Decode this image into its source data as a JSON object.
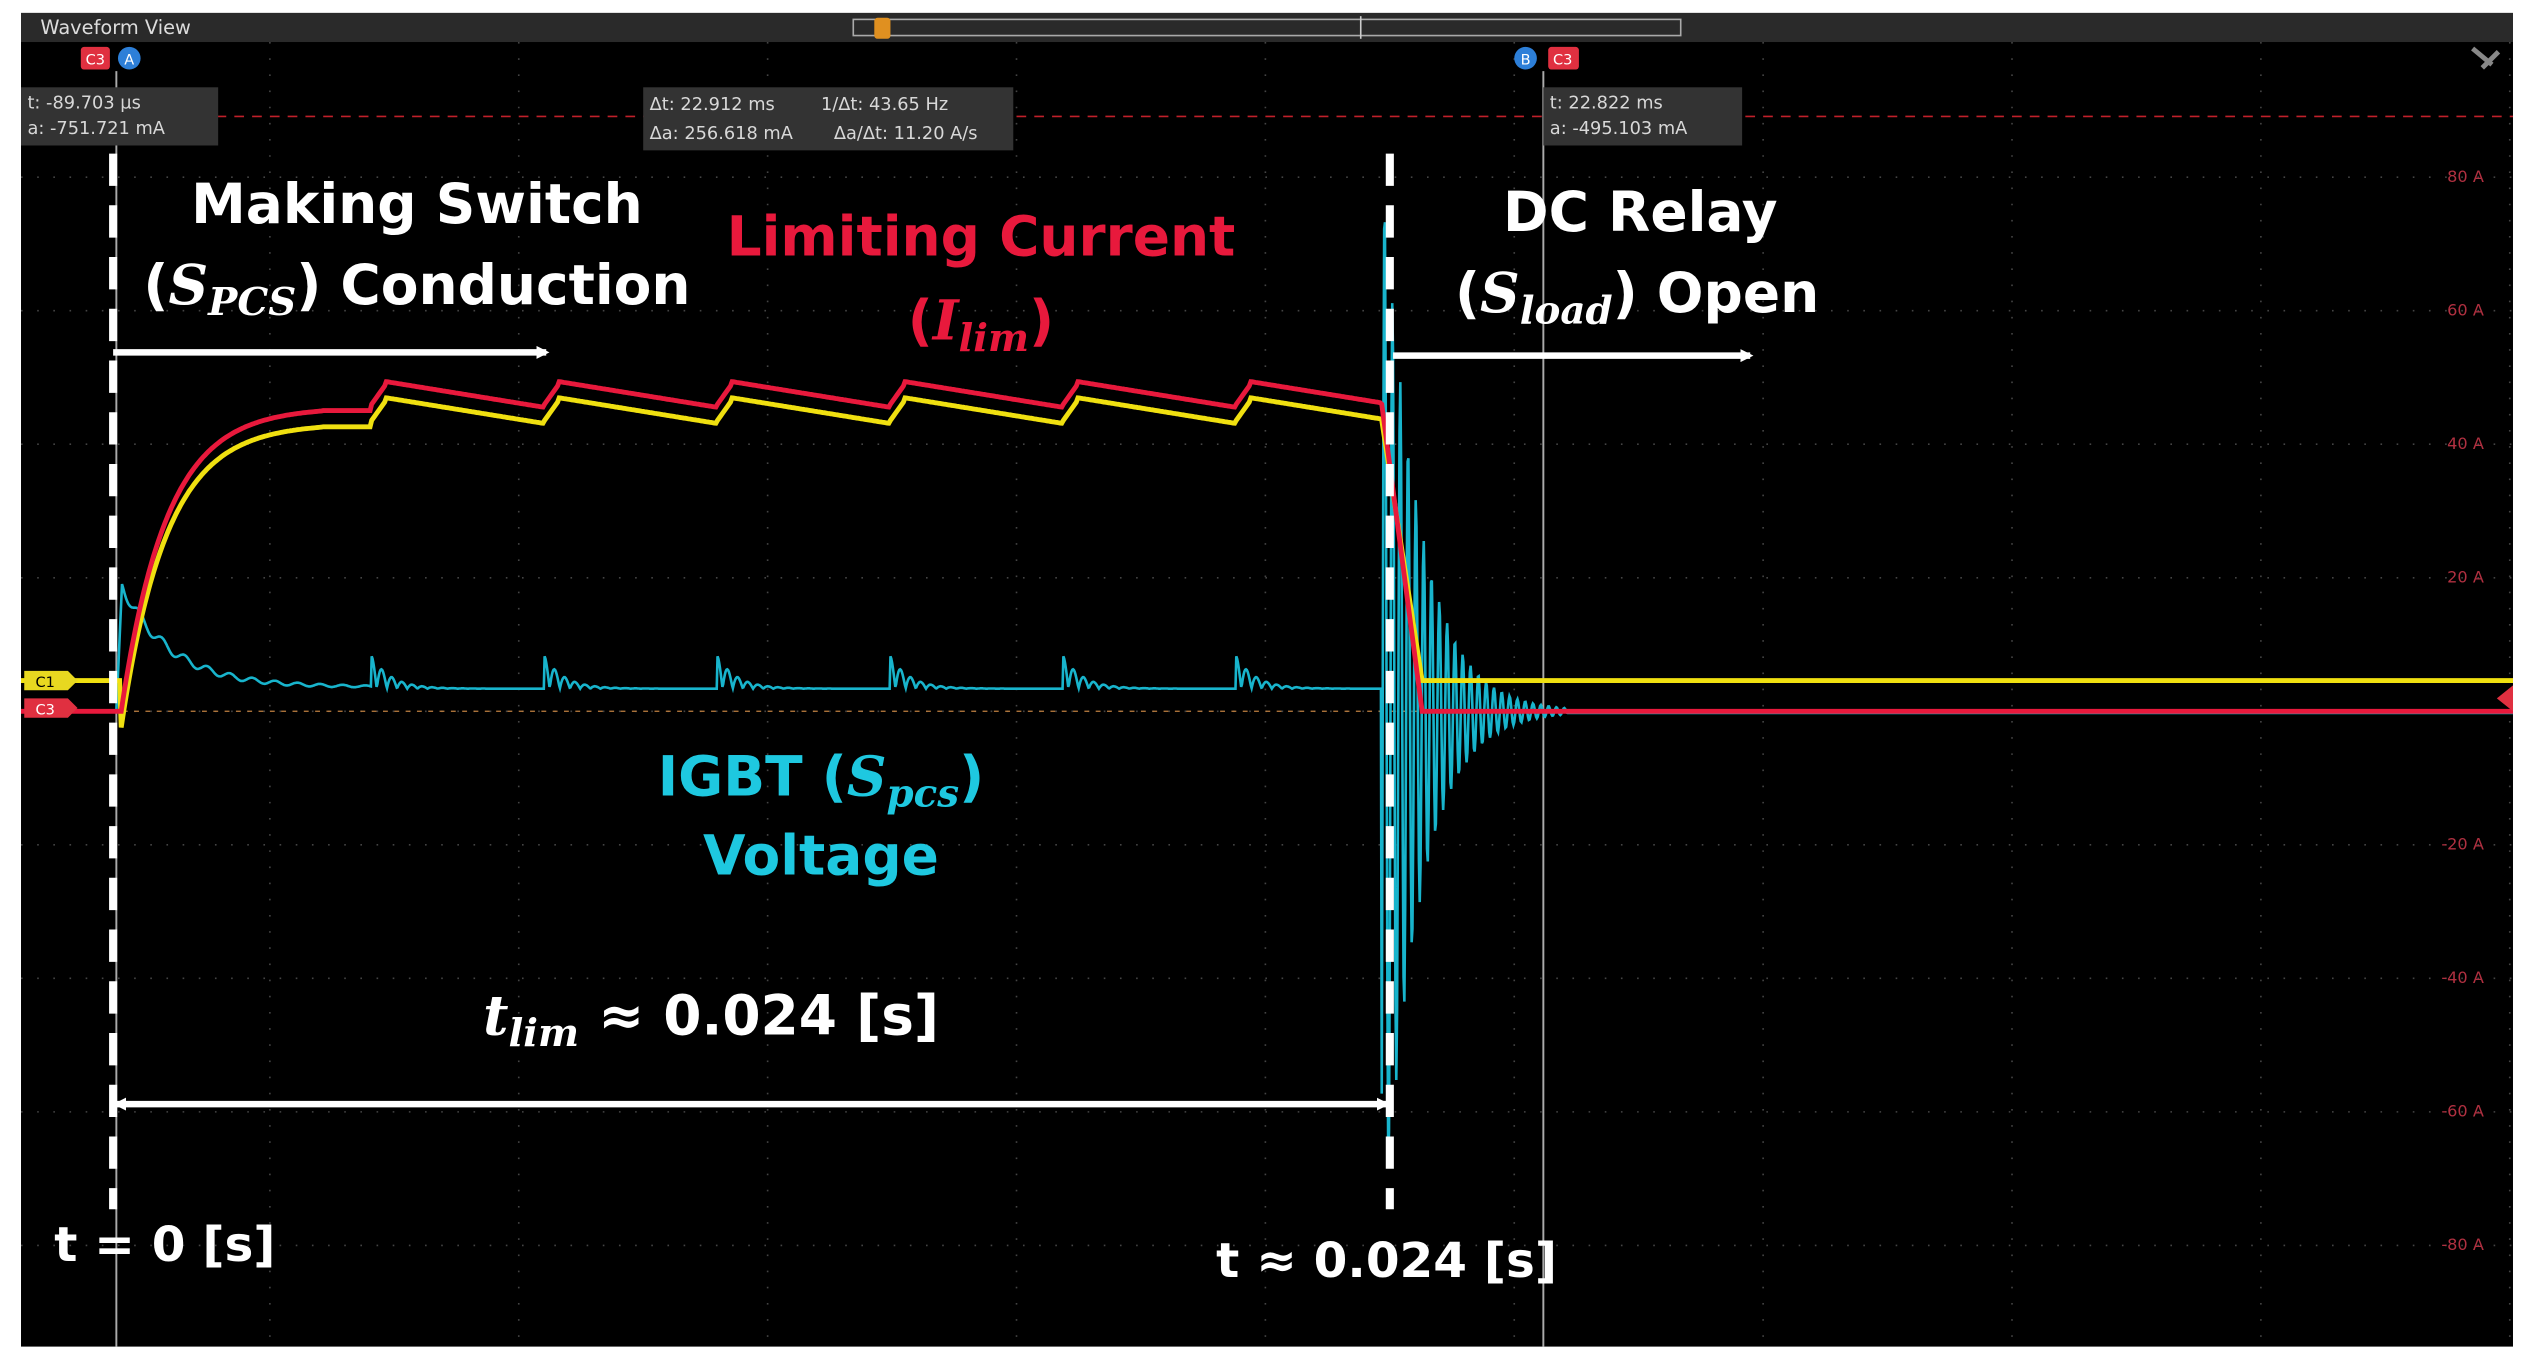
{
  "window": {
    "title": "Waveform View"
  },
  "cursors": {
    "a_badges": [
      "C3",
      "A"
    ],
    "b_badges": [
      "B",
      "C3"
    ],
    "a_readout": [
      "t: -89.703 µs",
      "a: -751.721 mA"
    ],
    "delta_readout": [
      "Δt: 22.912 ms",
      "1/Δt: 43.65 Hz",
      "Δa: 256.618 mA",
      "Δa/Δt: 11.20 A/s"
    ],
    "b_readout": [
      "t: 22.822 ms",
      "a: -495.103 mA"
    ]
  },
  "channels": [
    "C1",
    "C3"
  ],
  "scale_labels": [
    "80 A",
    "60 A",
    "40 A",
    "20 A",
    "-20 A",
    "-40 A",
    "-60 A",
    "-80 A"
  ],
  "annotations": {
    "making_switch": {
      "line1": "Making Switch",
      "line2": [
        "(",
        "S",
        "PCS",
        ") Conduction"
      ]
    },
    "limiting_current": {
      "line1": "Limiting Current",
      "line2": [
        "(",
        "I",
        "lim",
        ")"
      ]
    },
    "dc_relay": {
      "line1": "DC Relay",
      "line2": [
        "(",
        "S",
        "load",
        ") Open"
      ]
    },
    "igbt": {
      "line1": [
        "IGBT (",
        "S",
        "pcs",
        ")"
      ],
      "line2": "Voltage"
    },
    "t_lim": [
      "t",
      "lim",
      " ≈ 0.024 [s]"
    ],
    "t_start": "t = 0 [s]",
    "t_end": "t ≈ 0.024 [s]"
  }
}
